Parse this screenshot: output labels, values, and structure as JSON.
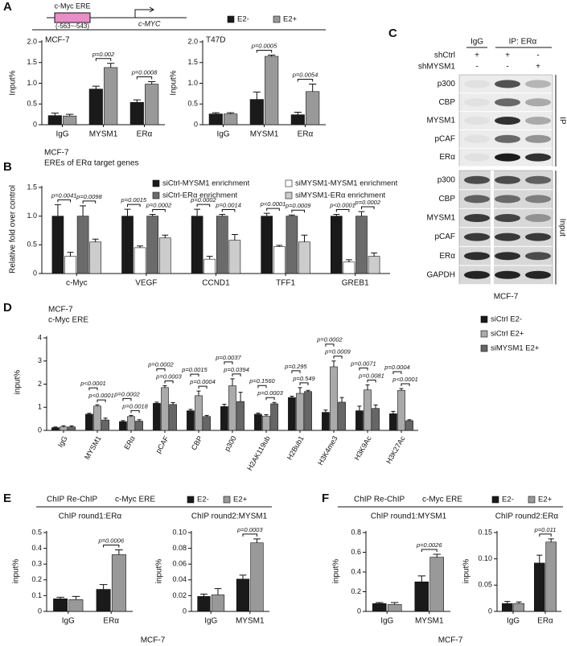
{
  "panel_labels": [
    "A",
    "B",
    "C",
    "D",
    "E",
    "F"
  ],
  "promoter_diagram": {
    "element": "c-Myc ERE",
    "position": "(-563~-543)",
    "gene": "c-MYC"
  },
  "panel_e": {
    "title": "ChIP Re-ChIP",
    "subtitle": "c-Myc ERE",
    "footer": "MCF-7"
  },
  "panel_f": {
    "title": "ChIP Re-ChIP",
    "subtitle": "c-Myc ERE",
    "footer": "MCF-7"
  },
  "blot": {
    "lane_headers": [
      "IgG",
      "IP: ERα"
    ],
    "treatments": [
      {
        "name": "shCtrl",
        "signs": [
          "+",
          "+",
          "-"
        ]
      },
      {
        "name": "shMYSM1",
        "signs": [
          "-",
          "-",
          "+"
        ]
      }
    ],
    "ip": {
      "label": "IP",
      "bands": [
        "p300",
        "CBP",
        "MYSM1",
        "pCAF",
        "ERα"
      ]
    },
    "input": {
      "label": "Input",
      "bands": [
        "p300",
        "CBP",
        "MYSM1",
        "pCAF",
        "ERα",
        "GAPDH"
      ]
    },
    "cell_line": "MCF-7"
  },
  "chart_data": [
    {
      "type": "bar",
      "title": "MCF-7",
      "y_label": "Input%",
      "categories": [
        "IgG",
        "MYSM1",
        "ERα"
      ],
      "series": [
        {
          "name": "E2-",
          "color": "#1a1a1a",
          "values": [
            0.22,
            0.86,
            0.54
          ],
          "errors": [
            0.06,
            0.07,
            0.06
          ]
        },
        {
          "name": "E2+",
          "color": "#999999",
          "values": [
            0.21,
            1.38,
            0.98
          ],
          "errors": [
            0.04,
            0.1,
            0.06
          ]
        }
      ],
      "annotations": [
        null,
        [
          "p=0.002"
        ],
        [
          "p=0.0008"
        ]
      ],
      "ylim": [
        0,
        2
      ],
      "yticks": [
        0,
        0.5,
        {
          "value": 1,
          "label": "1.0"
        },
        1.5,
        {
          "value": 2,
          "label": "2.0"
        }
      ]
    },
    {
      "type": "bar",
      "title": "T47D",
      "y_label": "Input%",
      "categories": [
        "IgG",
        "MYSM1",
        "ERα"
      ],
      "series": [
        {
          "color": "#1a1a1a",
          "values": [
            0.26,
            0.61,
            0.24
          ],
          "errors": [
            0.03,
            0.18,
            0.06
          ]
        },
        {
          "color": "#999999",
          "values": [
            0.26,
            1.65,
            0.8
          ],
          "errors": [
            0.03,
            0.03,
            0.18
          ]
        }
      ],
      "annotations": [
        null,
        [
          "p=0.0005"
        ],
        [
          "p=0.0054"
        ]
      ],
      "ylim": [
        0,
        2
      ],
      "yticks": [
        0,
        0.5,
        {
          "value": 1,
          "label": "1.0"
        },
        1.5,
        {
          "value": 2,
          "label": "2.0"
        }
      ]
    },
    {
      "type": "bar",
      "title": "MCF-7",
      "subtitle": "EREs of ERα target genes",
      "y_label": "Relative fold over control",
      "categories": [
        "c-Myc",
        "VEGF",
        "CCND1",
        "TFF1",
        "GREB1"
      ],
      "series": [
        {
          "name": "siCtrl-MYSM1 enrichment",
          "color": "#1a1a1a",
          "values": [
            1,
            1,
            1,
            1,
            1
          ],
          "errors": [
            0.2,
            0.12,
            0.12,
            0.05,
            0.03
          ]
        },
        {
          "name": "siMYSM1-MYSM1 enrichment",
          "color": "#ffffff",
          "values": [
            0.3,
            0.45,
            0.25,
            0.47,
            0.2
          ],
          "errors": [
            0.07,
            0.03,
            0.05,
            0.02,
            0.04
          ]
        },
        {
          "name": "siCtrl-ERα enrichment",
          "color": "#6b6b6b",
          "values": [
            1,
            1,
            1,
            1,
            1
          ],
          "errors": [
            0.18,
            0.03,
            0.03,
            0.02,
            0.08
          ]
        },
        {
          "name": "siMYSM1-ERα enrichment",
          "color": "#cccccc",
          "values": [
            0.55,
            0.62,
            0.58,
            0.55,
            0.3
          ],
          "errors": [
            0.05,
            0.05,
            0.1,
            0.12,
            0.06
          ]
        }
      ],
      "annotations": [
        [
          "p=0.0041",
          "p=0.0098"
        ],
        [
          "p=0.0015",
          "p=0.0002"
        ],
        [
          "p=0.0002",
          "p=0.0014"
        ],
        [
          "p<0.0001",
          "p=0.0009"
        ],
        [
          "p<0.0001",
          "p=0.0002"
        ]
      ],
      "ylim": [
        0,
        1.5
      ],
      "yticks": [
        0,
        0.5,
        {
          "value": 1,
          "label": "1.0"
        },
        1.5
      ]
    },
    {
      "type": "bar",
      "title": "MCF-7",
      "subtitle": "c-Myc ERE",
      "y_label": "input%",
      "categories": [
        "IgG",
        "MYSM1",
        "ERα",
        "pCAF",
        "CBP",
        "p300",
        "H2AK119ub",
        "H2Bub1",
        "H3K4me3",
        "H3K9Ac",
        "H3K27Ac"
      ],
      "series": [
        {
          "name": "siCtrl E2-",
          "color": "#1a1a1a",
          "values": [
            0.12,
            0.7,
            0.38,
            1.17,
            0.85,
            1.03,
            0.7,
            1.42,
            0.78,
            0.85,
            0.72
          ],
          "errors": [
            0.03,
            0.04,
            0.04,
            0.05,
            0.06,
            0.1,
            0.05,
            0.06,
            0.1,
            0.2,
            0.1
          ]
        },
        {
          "name": "siCtrl E2+",
          "color": "#aaaaaa",
          "values": [
            0.15,
            1.05,
            0.6,
            1.85,
            1.5,
            1.93,
            0.62,
            1.6,
            2.75,
            1.75,
            1.73
          ],
          "errors": [
            0.05,
            0.06,
            0.05,
            0.08,
            0.2,
            0.3,
            0.06,
            0.25,
            0.25,
            0.22,
            0.08
          ]
        },
        {
          "name": "siMYSM1 E2+",
          "color": "#666666",
          "values": [
            0.15,
            0.45,
            0.4,
            1.12,
            0.6,
            1.25,
            1.15,
            1.68,
            1.22,
            0.95,
            0.42
          ],
          "errors": [
            0.04,
            0.08,
            0.06,
            0.08,
            0.05,
            0.4,
            0.06,
            0.05,
            0.2,
            0.15,
            0.04
          ]
        }
      ],
      "annotations": [
        null,
        [
          "p<0.0001",
          "p<0.0001"
        ],
        [
          "p=0.0002",
          "p=0.0018"
        ],
        [
          "p=0.0002",
          "p=0.0003"
        ],
        [
          "p=0.0015",
          "p=0.0004"
        ],
        [
          "p=0.0037",
          "p=0.0394"
        ],
        [
          "p=0.1560",
          "p=0.0003"
        ],
        [
          "p=0.295",
          "p=0.549"
        ],
        [
          "p=0.0002",
          "p=0.0009"
        ],
        [
          "p=0.0071",
          "p=0.0081"
        ],
        [
          "p=0.0004",
          "p<0.0001"
        ]
      ],
      "ylim": [
        0,
        4
      ],
      "yticks": [
        0,
        1,
        2,
        3,
        4
      ]
    },
    {
      "type": "bar",
      "title": "ChIP round1:ERα",
      "y_label": "input%",
      "categories": [
        "IgG",
        "ERα"
      ],
      "series": [
        {
          "name": "E2-",
          "color": "#1a1a1a",
          "values": [
            0.08,
            0.14
          ],
          "errors": [
            0.01,
            0.03
          ]
        },
        {
          "name": "E2+",
          "color": "#999999",
          "values": [
            0.075,
            0.36
          ],
          "errors": [
            0.02,
            0.03
          ]
        }
      ],
      "annotations": [
        null,
        [
          "p=0.0006"
        ]
      ],
      "ylim": [
        0,
        0.5
      ],
      "yticks": [
        0,
        0.1,
        0.2,
        0.3,
        0.4,
        0.5
      ]
    },
    {
      "type": "bar",
      "title": "ChIP round2:MYSM1",
      "y_label": "input%",
      "categories": [
        "IgG",
        "MYSM1"
      ],
      "series": [
        {
          "color": "#1a1a1a",
          "values": [
            0.019,
            0.041
          ],
          "errors": [
            0.003,
            0.005
          ]
        },
        {
          "color": "#999999",
          "values": [
            0.021,
            0.087
          ],
          "errors": [
            0.008,
            0.005
          ]
        }
      ],
      "annotations": [
        null,
        [
          "p=0.0003"
        ]
      ],
      "ylim": [
        0,
        0.1
      ],
      "yticks": [
        0,
        0.02,
        0.04,
        0.06,
        0.08,
        {
          "value": 0.1,
          "label": "0.10"
        }
      ]
    },
    {
      "type": "bar",
      "title": "ChIP round1:MYSM1",
      "y_label": "input%",
      "categories": [
        "IgG",
        "MYSM1"
      ],
      "series": [
        {
          "name": "E2-",
          "color": "#1a1a1a",
          "values": [
            0.08,
            0.3
          ],
          "errors": [
            0.01,
            0.06
          ]
        },
        {
          "name": "E2+",
          "color": "#999999",
          "values": [
            0.07,
            0.55
          ],
          "errors": [
            0.02,
            0.03
          ]
        }
      ],
      "annotations": [
        null,
        [
          "p=0.0026"
        ]
      ],
      "ylim": [
        0,
        0.8
      ],
      "yticks": [
        0,
        0.2,
        0.4,
        0.6,
        0.8
      ]
    },
    {
      "type": "bar",
      "title": "ChIP round2:ERα",
      "y_label": "input%",
      "categories": [
        "IgG",
        "ERα"
      ],
      "series": [
        {
          "color": "#1a1a1a",
          "values": [
            0.015,
            0.092
          ],
          "errors": [
            0.004,
            0.015
          ]
        },
        {
          "color": "#999999",
          "values": [
            0.015,
            0.132
          ],
          "errors": [
            0.003,
            0.006
          ]
        }
      ],
      "annotations": [
        null,
        [
          "p=0.011"
        ]
      ],
      "ylim": [
        0,
        0.15
      ],
      "yticks": [
        0,
        0.05,
        {
          "value": 0.1,
          "label": "0.10"
        },
        0.15
      ]
    }
  ]
}
